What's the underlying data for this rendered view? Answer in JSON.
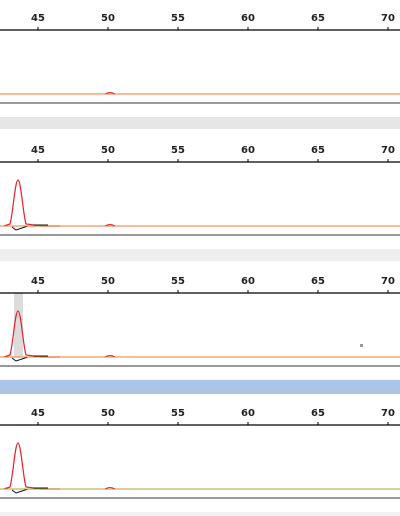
{
  "panels": [
    {
      "ticks": [
        45,
        50,
        55,
        60,
        65,
        70
      ]
    },
    {
      "ticks": [
        45,
        50,
        55,
        60,
        65,
        70
      ]
    },
    {
      "ticks": [
        45,
        50,
        55,
        60,
        65,
        70
      ]
    },
    {
      "ticks": [
        45,
        50,
        55,
        60,
        65,
        70
      ]
    }
  ]
}
